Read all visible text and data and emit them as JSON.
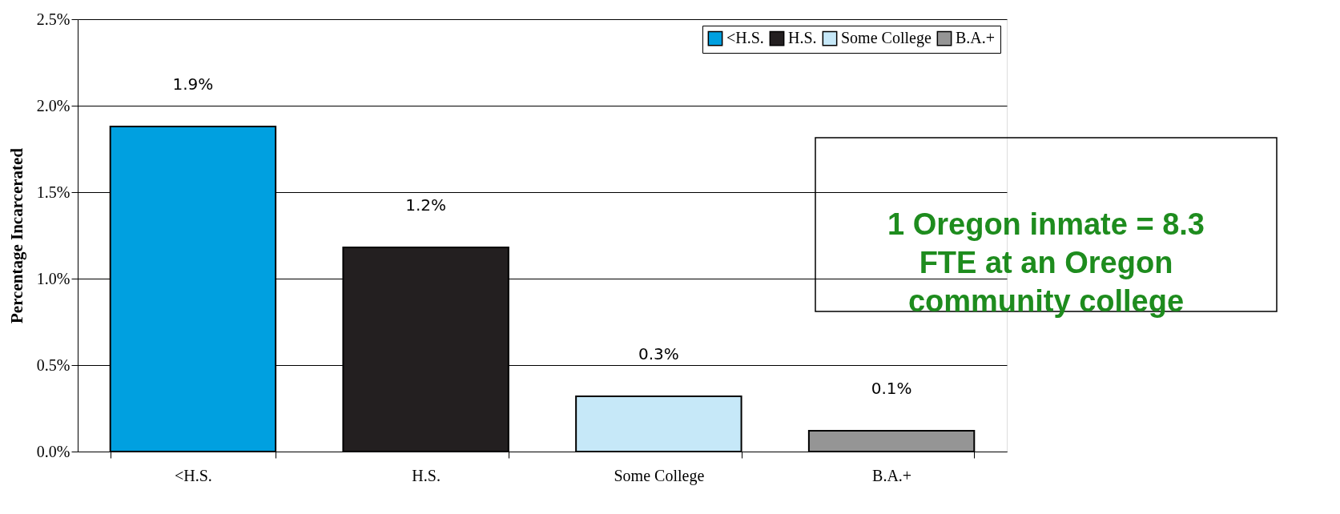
{
  "chart_data": {
    "type": "bar",
    "ylabel": "Percentage Incarcerated",
    "categories": [
      "<H.S.",
      "H.S.",
      "Some College",
      "B.A.+"
    ],
    "series": [
      {
        "name": "<H.S.",
        "color": "#00a0e0",
        "values": [
          1.88,
          null,
          null,
          null
        ],
        "value_labels": [
          "1.9%",
          null,
          null,
          null
        ]
      },
      {
        "name": "H.S.",
        "color": "#231f20",
        "values": [
          null,
          1.18,
          null,
          null
        ],
        "value_labels": [
          null,
          "1.2%",
          null,
          null
        ]
      },
      {
        "name": "Some College",
        "color": "#c6e8f8",
        "values": [
          null,
          null,
          0.32,
          null
        ],
        "value_labels": [
          null,
          null,
          "0.3%",
          null
        ]
      },
      {
        "name": "B.A.+",
        "color": "#959595",
        "values": [
          null,
          null,
          null,
          0.12
        ],
        "value_labels": [
          null,
          null,
          null,
          "0.1%"
        ]
      }
    ],
    "ylim": [
      0,
      2.5
    ],
    "yticks": [
      {
        "value": 0,
        "label": "0.0%"
      },
      {
        "value": 0.5,
        "label": "0.5%"
      },
      {
        "value": 1.0,
        "label": "1.0%"
      },
      {
        "value": 1.5,
        "label": "1.5%"
      },
      {
        "value": 2.0,
        "label": "2.0%"
      },
      {
        "value": 2.5,
        "label": "2.5%"
      }
    ],
    "grid": "y",
    "legend": "top right",
    "annotations": [
      "1 Oregon inmate = 8.3 FTE at an Oregon community college"
    ]
  }
}
